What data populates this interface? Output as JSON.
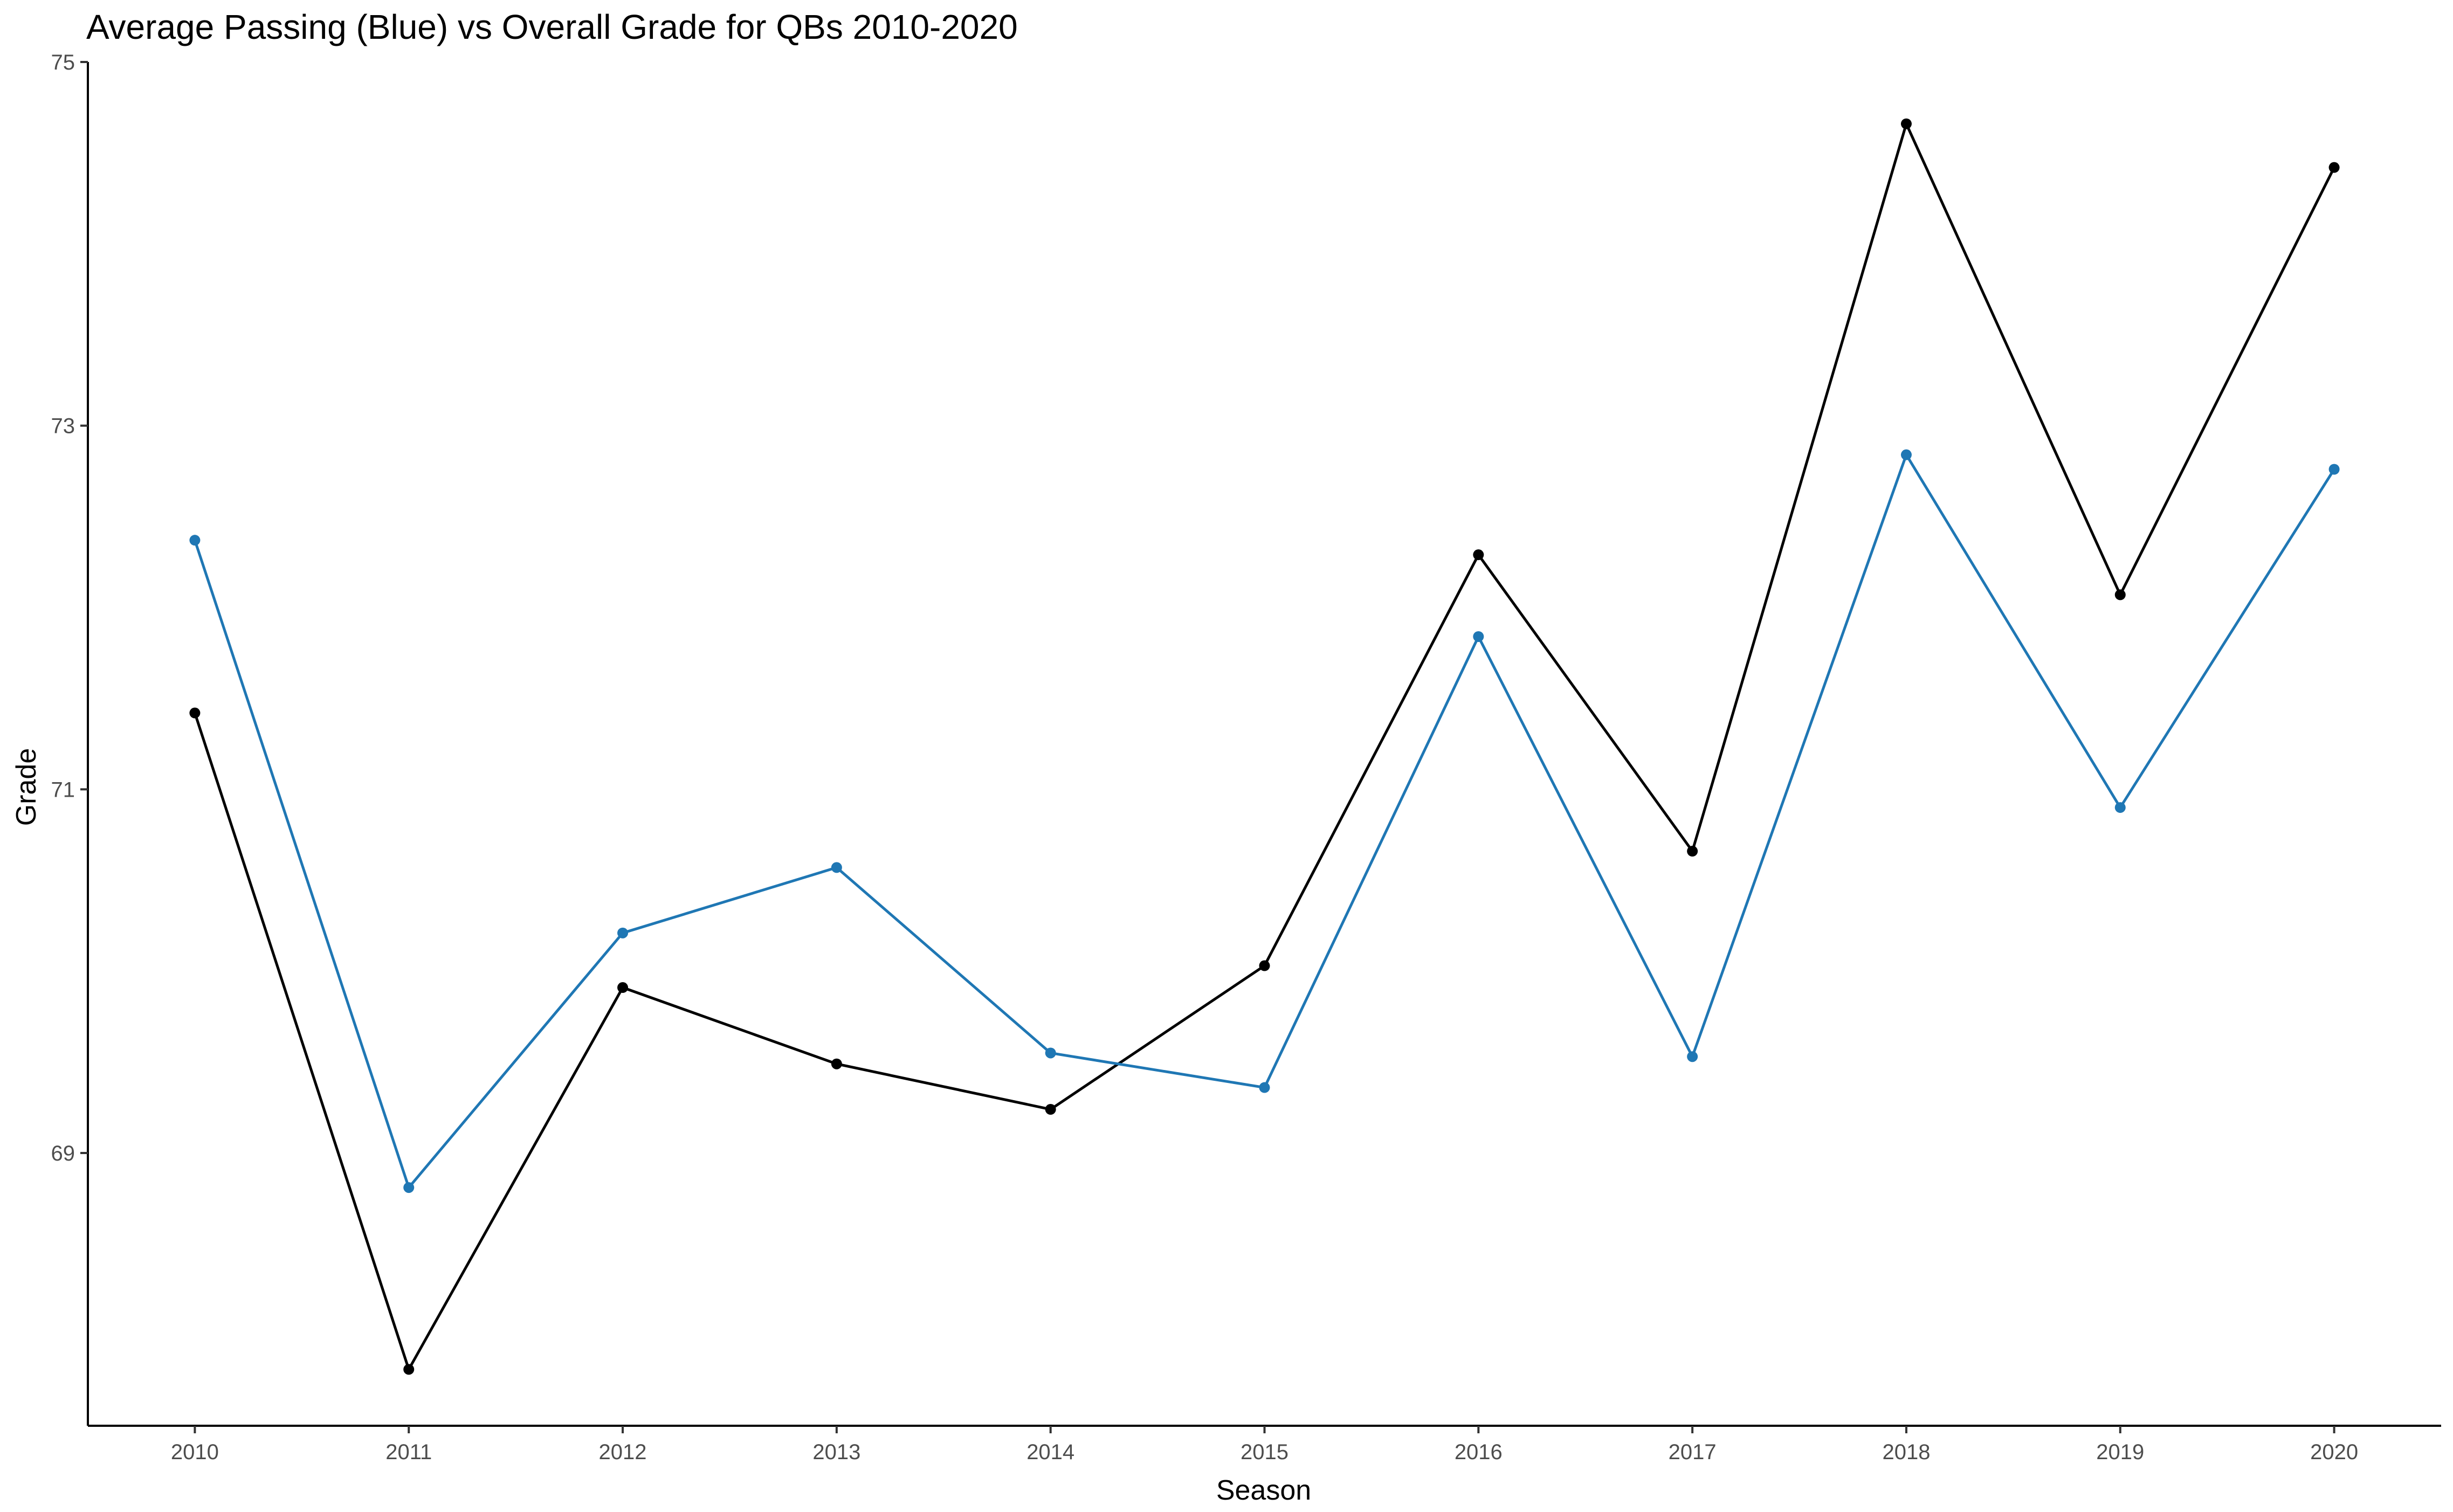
{
  "chart_data": {
    "type": "line",
    "title": "Average Passing (Blue) vs Overall Grade for QBs 2010-2020",
    "xlabel": "Season",
    "ylabel": "Grade",
    "x": [
      2010,
      2011,
      2012,
      2013,
      2014,
      2015,
      2016,
      2017,
      2018,
      2019,
      2020
    ],
    "x_tick_labels": [
      "2010",
      "2011",
      "2012",
      "2013",
      "2014",
      "2015",
      "2016",
      "2017",
      "2018",
      "2019",
      "2020"
    ],
    "y_ticks": [
      69,
      71,
      73,
      75
    ],
    "y_tick_labels": [
      "69",
      "71",
      "73",
      "75"
    ],
    "xlim": [
      2009.5,
      2020.5
    ],
    "ylim": [
      67.5,
      75.0
    ],
    "grid": false,
    "series": [
      {
        "color": "#1f77b4",
        "values": [
          72.37,
          68.81,
          70.21,
          70.57,
          69.55,
          69.36,
          71.84,
          69.53,
          72.84,
          70.9,
          72.76
        ]
      },
      {
        "color": "#000000",
        "values": [
          71.42,
          67.81,
          69.91,
          69.49,
          69.24,
          70.03,
          72.29,
          70.66,
          74.66,
          72.07,
          74.42
        ]
      }
    ]
  }
}
